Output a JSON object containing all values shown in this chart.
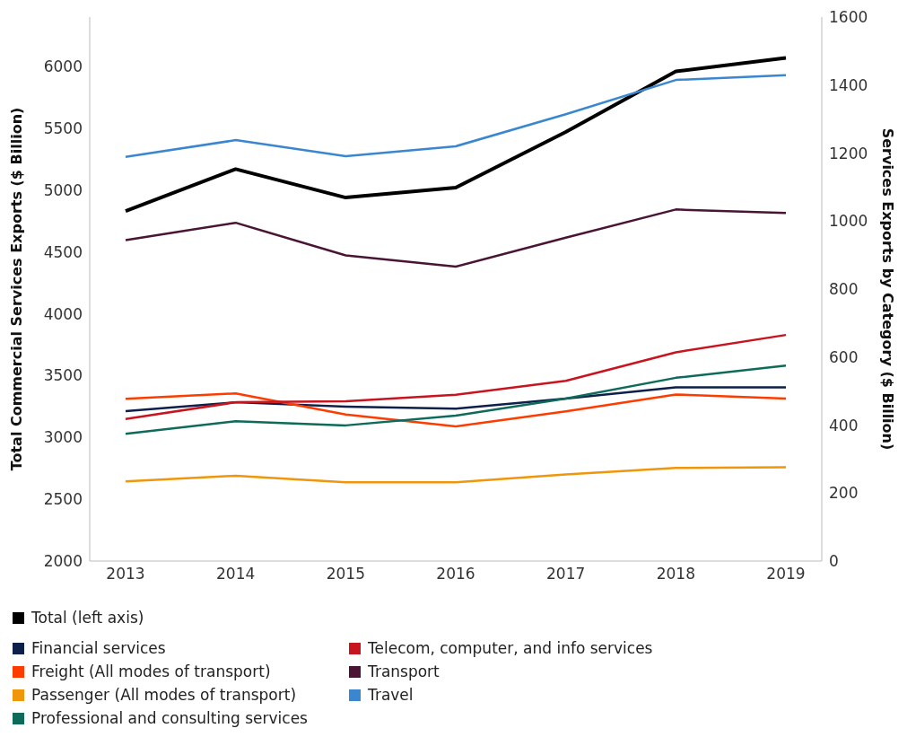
{
  "chart_data": {
    "type": "line",
    "categories": [
      "2013",
      "2014",
      "2015",
      "2016",
      "2017",
      "2018",
      "2019"
    ],
    "ylabel": "Total Commercial Services Exports ($ Billion)",
    "y2label": "Services Exports by Category ($ Billion)",
    "ylim": [
      2000,
      6400
    ],
    "yticks": [
      2000,
      2500,
      3000,
      3500,
      4000,
      4500,
      5000,
      5500,
      6000
    ],
    "y2lim": [
      0,
      1600
    ],
    "y2ticks": [
      0,
      200,
      400,
      600,
      800,
      1000,
      1200,
      1400,
      1600
    ],
    "grid": false,
    "legend": "bottom",
    "marker": "none",
    "line_style": "solid",
    "series": [
      {
        "name": "Total (left axis)",
        "color": "#000000",
        "values": [
          4830,
          5170,
          4940,
          5020,
          5470,
          5960,
          6070
        ]
      },
      {
        "name": "Financial services",
        "color": "#0d1f4a",
        "axis": "y2",
        "values": [
          441,
          467,
          454,
          448,
          478,
          511,
          511
        ]
      },
      {
        "name": "Freight (All modes of transport)",
        "color": "#ff3c00",
        "axis": "y2",
        "values": [
          477,
          493,
          431,
          396,
          440,
          490,
          478
        ]
      },
      {
        "name": "Passenger (All modes of transport)",
        "color": "#f0960a",
        "axis": "y2",
        "values": [
          234,
          251,
          232,
          232,
          255,
          274,
          276
        ]
      },
      {
        "name": "Professional and consulting services",
        "color": "#0e6b5a",
        "axis": "y2",
        "values": [
          374,
          411,
          399,
          428,
          478,
          539,
          575
        ]
      },
      {
        "name": "Telecom, computer, and info services",
        "color": "#c8141e",
        "axis": "y2",
        "values": [
          418,
          467,
          470,
          489,
          530,
          614,
          665
        ]
      },
      {
        "name": "Transport",
        "color": "#4a1535",
        "axis": "y2",
        "values": [
          944,
          995,
          899,
          866,
          951,
          1034,
          1024
        ]
      },
      {
        "name": "Travel",
        "color": "#3a87d0",
        "axis": "y2",
        "values": [
          1189,
          1238,
          1191,
          1220,
          1314,
          1415,
          1429
        ]
      }
    ]
  }
}
